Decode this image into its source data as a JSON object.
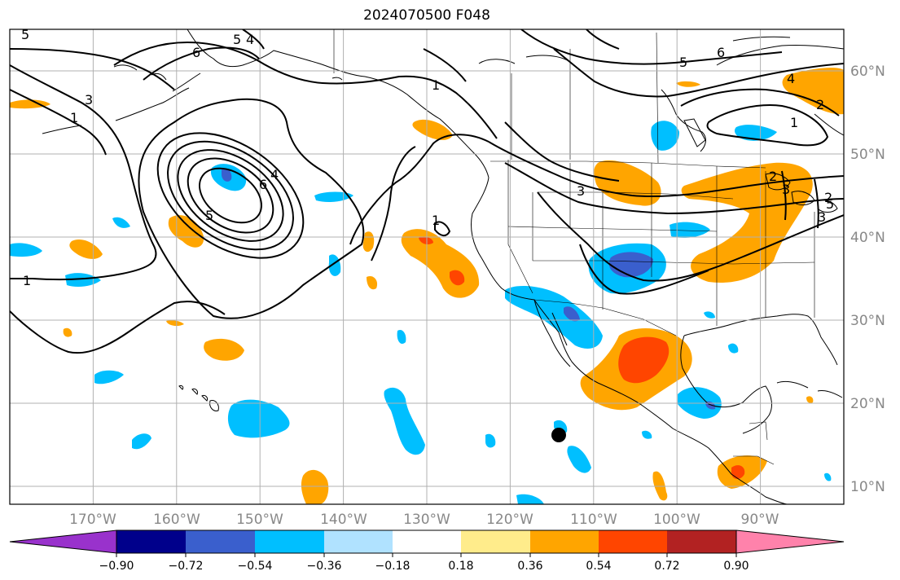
{
  "title": "2024070500 F048",
  "map": {
    "lon_labels": [
      "170°W",
      "160°W",
      "150°W",
      "140°W",
      "130°W",
      "120°W",
      "110°W",
      "100°W",
      "90°W"
    ],
    "lat_labels": [
      "60°N",
      "50°N",
      "40°N",
      "30°N",
      "20°N",
      "10°N"
    ],
    "contour_labels": [
      "5",
      "6",
      "5",
      "4",
      "6",
      "5",
      "3",
      "1",
      "1",
      "1",
      "3",
      "2",
      "4",
      "5",
      "6",
      "4",
      "5",
      "1",
      "2",
      "3",
      "1",
      "2",
      "3"
    ],
    "marker": "black-dot",
    "colors": {
      "orange": "#ffa500",
      "red_orange": "#ff4500",
      "deep_sky_blue": "#00bfff",
      "royal_blue": "#3a5fcd",
      "grid": "#b0b0b0"
    }
  },
  "colorbar": {
    "ticks": [
      "−0.90",
      "−0.72",
      "−0.54",
      "−0.36",
      "−0.18",
      "0.18",
      "0.36",
      "0.54",
      "0.72",
      "0.90"
    ],
    "colors": [
      "#9932cc",
      "#00008b",
      "#3a5fcd",
      "#00bfff",
      "#b0e2ff",
      "#ffffff",
      "#ffec8b",
      "#ffa500",
      "#ff4500",
      "#b22222",
      "#ff82ab"
    ]
  }
}
